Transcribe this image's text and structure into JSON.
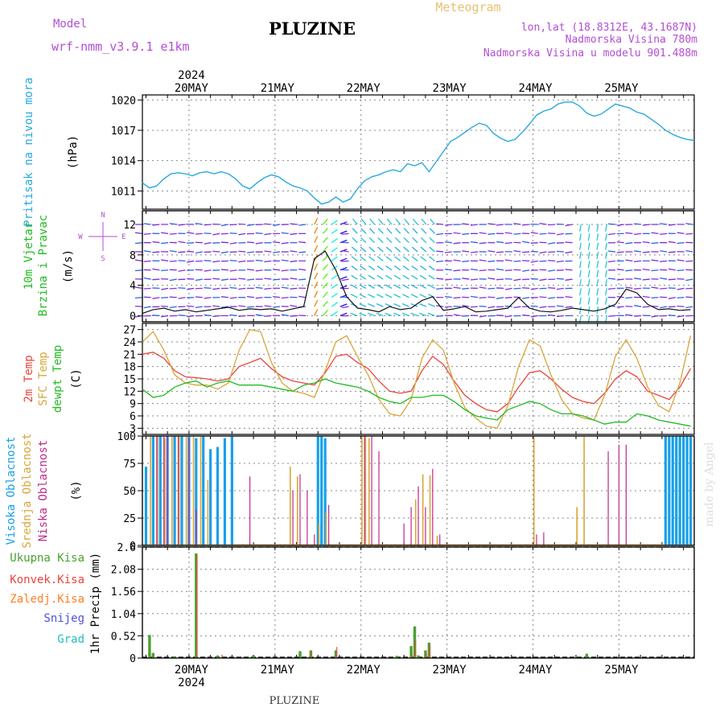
{
  "header": {
    "model_label": "Model",
    "model_name": "wrf-nmm_v3.9.1 e1km",
    "station": "PLUZINE",
    "product": "Meteogram",
    "lonlat": "lon,lat (18.8312E, 43.1687N)",
    "elevation": "Nadmorska Visina 780m",
    "model_elevation": "Nadmorska Visina u modelu 901.488m",
    "footer_station": "PLUZINE",
    "watermark": "made by Angel"
  },
  "colors": {
    "pressure": "#29a9e0",
    "temp2m": "#e8453c",
    "sfc_temp": "#d9a63a",
    "dewpoint": "#22bb22",
    "high_cloud": "#1aa0e8",
    "mid_cloud": "#d9a63a",
    "low_cloud": "#c0288c",
    "total_precip": "#4aa030",
    "conv_precip": "#e8453c",
    "frozen_precip": "#ff7f20",
    "snow": "#5050e0",
    "graupel": "#20c0c0",
    "title_purple": "#b44ed2",
    "title_gold": "#e8c070"
  },
  "time_axis": {
    "top_year": "2024",
    "bottom_year": "2024",
    "days": [
      "20MAY",
      "21MAY",
      "22MAY",
      "23MAY",
      "24MAY",
      "25MAY"
    ],
    "start_hour": -13,
    "end_hour": 141
  },
  "chart_data": [
    {
      "type": "line",
      "panel": "pressure",
      "ylabel": [
        "Pritisak na nivou mora",
        "(hPa)"
      ],
      "yticks": [
        1011,
        1014,
        1017,
        1020
      ],
      "ylim": [
        1009.2,
        1020.5
      ],
      "series": [
        {
          "x": [
            -13,
            -11,
            -9,
            -7,
            -5,
            -3,
            -1,
            1,
            3,
            5,
            7,
            9,
            11,
            13,
            15,
            17,
            19,
            21,
            23,
            25,
            27,
            29,
            31,
            33,
            35,
            37,
            39,
            41,
            43,
            45,
            47,
            49,
            51,
            53,
            55,
            57,
            59,
            61,
            63,
            65,
            67,
            69,
            71,
            73,
            75,
            77,
            79,
            81,
            83,
            85,
            87,
            89,
            91,
            93,
            95,
            97,
            99,
            101,
            103,
            105,
            107,
            109,
            111,
            113,
            115,
            117,
            119,
            121,
            123,
            125,
            127,
            129,
            131,
            133,
            135,
            137,
            139,
            141
          ],
          "values": [
            1011.8,
            1011.3,
            1011.5,
            1012.2,
            1012.7,
            1012.8,
            1012.7,
            1012.5,
            1012.8,
            1012.9,
            1012.7,
            1012.9,
            1012.7,
            1012.2,
            1011.5,
            1011.2,
            1011.8,
            1012.3,
            1012.6,
            1012.4,
            1011.9,
            1011.5,
            1011.3,
            1011.0,
            1010.3,
            1009.7,
            1009.9,
            1010.4,
            1009.9,
            1010.2,
            1011.2,
            1012.0,
            1012.4,
            1012.6,
            1012.9,
            1013.1,
            1012.9,
            1013.7,
            1013.5,
            1013.8,
            1012.9,
            1013.9,
            1014.9,
            1015.9,
            1016.3,
            1016.8,
            1017.3,
            1017.7,
            1017.5,
            1016.7,
            1016.2,
            1015.9,
            1016.1,
            1016.8,
            1017.6,
            1018.5,
            1018.9,
            1019.1,
            1019.6,
            1019.8,
            1019.8,
            1019.4,
            1018.7,
            1018.4,
            1018.6,
            1019.1,
            1019.6,
            1019.4,
            1019.2,
            1018.8,
            1018.6,
            1018.1,
            1017.6,
            1017.0,
            1016.6,
            1016.3,
            1016.1,
            1016.0
          ]
        }
      ]
    },
    {
      "type": "line",
      "panel": "wind",
      "ylabel": [
        "10m Vjetar",
        "Brzina i Pravac",
        "(m/s)"
      ],
      "compass": [
        "N",
        "W",
        "E",
        "S"
      ],
      "yticks": [
        0,
        4,
        8,
        12
      ],
      "ylim": [
        -0.8,
        13.8
      ],
      "series": [
        {
          "name": "speed",
          "x": [
            -13,
            -10,
            -7,
            -4,
            -1,
            2,
            5,
            8,
            11,
            14,
            17,
            20,
            23,
            26,
            29,
            32,
            35,
            38,
            41,
            44,
            47,
            50,
            53,
            56,
            59,
            62,
            65,
            68,
            71,
            74,
            77,
            80,
            83,
            86,
            89,
            92,
            95,
            98,
            101,
            104,
            107,
            110,
            113,
            116,
            119,
            122,
            125,
            128,
            131,
            134,
            137,
            140
          ],
          "values": [
            0.3,
            0.8,
            1.0,
            0.6,
            0.8,
            0.5,
            0.7,
            0.9,
            1.1,
            0.7,
            0.9,
            0.8,
            0.9,
            0.6,
            0.9,
            1.2,
            7.5,
            8.5,
            6.0,
            2.5,
            1.0,
            0.8,
            0.5,
            1.2,
            0.8,
            1.0,
            2.0,
            2.5,
            0.7,
            0.9,
            1.2,
            0.5,
            0.6,
            0.8,
            1.0,
            2.4,
            1.0,
            0.6,
            0.5,
            0.7,
            1.0,
            0.8,
            0.6,
            0.9,
            1.5,
            3.5,
            3.0,
            1.5,
            0.8,
            0.9,
            0.7,
            0.8
          ]
        }
      ]
    },
    {
      "type": "line",
      "panel": "temperature",
      "ylabel": [
        "2m Temp",
        "SFC Temp",
        "dewpt Temp",
        "(C)"
      ],
      "yticks": [
        3,
        6,
        9,
        12,
        15,
        18,
        21,
        24,
        27
      ],
      "ylim": [
        1.5,
        28.5
      ],
      "series": [
        {
          "name": "2m Temp",
          "x": [
            -13,
            -10,
            -7,
            -4,
            -1,
            2,
            5,
            8,
            11,
            14,
            17,
            20,
            23,
            26,
            29,
            32,
            35,
            38,
            41,
            44,
            47,
            50,
            53,
            56,
            59,
            62,
            65,
            68,
            71,
            74,
            77,
            80,
            83,
            86,
            89,
            92,
            95,
            98,
            101,
            104,
            107,
            110,
            113,
            116,
            119,
            122,
            125,
            128,
            131,
            134,
            137,
            140
          ],
          "values": [
            21.0,
            21.5,
            20.0,
            17.0,
            15.5,
            15.3,
            15.0,
            14.5,
            15.0,
            18.0,
            19.0,
            20.0,
            17.5,
            15.5,
            14.5,
            14.0,
            13.5,
            16.5,
            20.5,
            21.0,
            19.0,
            17.5,
            14.5,
            12.0,
            11.5,
            12.0,
            17.0,
            20.5,
            18.5,
            14.5,
            11.0,
            9.0,
            7.5,
            7.0,
            9.0,
            13.0,
            16.5,
            17.0,
            15.0,
            12.5,
            10.5,
            9.5,
            9.0,
            11.5,
            15.0,
            17.0,
            15.5,
            12.0,
            11.0,
            10.0,
            13.0,
            17.5
          ]
        },
        {
          "name": "SFC Temp",
          "x": [
            -13,
            -10,
            -7,
            -4,
            -1,
            2,
            5,
            8,
            11,
            14,
            17,
            20,
            23,
            26,
            29,
            32,
            35,
            38,
            41,
            44,
            47,
            50,
            53,
            56,
            59,
            62,
            65,
            68,
            71,
            74,
            77,
            80,
            83,
            86,
            89,
            92,
            95,
            98,
            101,
            104,
            107,
            110,
            113,
            116,
            119,
            122,
            125,
            128,
            131,
            134,
            137,
            140
          ],
          "values": [
            24.0,
            26.5,
            22.0,
            16.0,
            14.0,
            13.5,
            13.5,
            12.5,
            14.0,
            22.0,
            27.0,
            26.5,
            19.0,
            14.0,
            12.0,
            11.5,
            10.5,
            17.0,
            24.0,
            25.5,
            20.5,
            16.0,
            10.0,
            6.5,
            6.0,
            10.0,
            20.0,
            24.5,
            22.0,
            14.0,
            8.0,
            5.5,
            3.5,
            3.0,
            8.5,
            18.0,
            24.5,
            23.0,
            16.0,
            10.0,
            6.5,
            5.5,
            5.0,
            11.0,
            20.5,
            24.5,
            20.0,
            13.0,
            8.5,
            7.0,
            14.0,
            25.5
          ]
        },
        {
          "name": "dewpt Temp",
          "x": [
            -13,
            -10,
            -7,
            -4,
            -1,
            2,
            5,
            8,
            11,
            14,
            17,
            20,
            23,
            26,
            29,
            32,
            35,
            38,
            41,
            44,
            47,
            50,
            53,
            56,
            59,
            62,
            65,
            68,
            71,
            74,
            77,
            80,
            83,
            86,
            89,
            92,
            95,
            98,
            101,
            104,
            107,
            110,
            113,
            116,
            119,
            122,
            125,
            128,
            131,
            134,
            137,
            140
          ],
          "values": [
            12.5,
            10.5,
            11.0,
            13.0,
            14.0,
            14.5,
            13.0,
            14.0,
            14.5,
            13.5,
            13.5,
            13.5,
            13.0,
            12.5,
            12.0,
            13.5,
            14.0,
            15.0,
            14.0,
            13.5,
            13.0,
            12.0,
            10.5,
            9.5,
            9.0,
            10.5,
            10.5,
            11.0,
            11.0,
            9.5,
            7.5,
            6.0,
            5.5,
            5.0,
            7.5,
            8.5,
            9.5,
            9.0,
            7.5,
            6.5,
            6.5,
            6.0,
            5.0,
            4.0,
            4.5,
            4.5,
            6.5,
            6.0,
            5.0,
            4.5,
            4.0,
            3.5
          ]
        }
      ]
    },
    {
      "type": "bar",
      "panel": "cloud",
      "ylabel_lines": [
        "Visoka Oblacnost",
        "Srednja Oblacnost",
        "Niska Oblacnost"
      ],
      "ylabel_unit": "(%)",
      "yticks": [
        0,
        25,
        50,
        75,
        100
      ],
      "ylim": [
        0,
        100
      ],
      "series": [
        {
          "name": "Visoka Oblacnost",
          "x": [
            -12,
            -10,
            -8,
            -6,
            -4,
            -2,
            0,
            2,
            4,
            6,
            8,
            10,
            12,
            36,
            37,
            38,
            133,
            134,
            135,
            136,
            137,
            138,
            139,
            140
          ],
          "values": [
            72,
            100,
            100,
            100,
            100,
            100,
            100,
            98,
            100,
            88,
            90,
            98,
            100,
            100,
            100,
            98,
            100,
            100,
            100,
            100,
            100,
            100,
            100,
            100
          ]
        },
        {
          "name": "Srednja Oblacnost",
          "x": [
            -11,
            -9,
            -7,
            -5,
            -3,
            -1,
            1,
            3,
            5,
            28,
            30,
            36,
            38,
            48,
            49,
            50,
            63,
            65,
            67,
            69,
            96,
            108,
            110
          ],
          "values": [
            100,
            100,
            98,
            100,
            100,
            100,
            100,
            100,
            60,
            72,
            63,
            20,
            30,
            100,
            100,
            98,
            42,
            65,
            64,
            9,
            100,
            35,
            100
          ]
        },
        {
          "name": "Niska Oblacnost",
          "x": [
            -9,
            -7,
            -6,
            -3,
            0,
            2,
            13,
            17,
            29,
            31,
            33,
            35,
            39,
            49,
            51,
            53,
            60,
            62,
            64,
            66,
            68,
            70,
            97,
            99,
            117,
            120,
            122
          ],
          "values": [
            100,
            100,
            100,
            100,
            98,
            33,
            0,
            63,
            50,
            65,
            50,
            10,
            37,
            100,
            100,
            86,
            20,
            35,
            54,
            35,
            70,
            10,
            10,
            12,
            86,
            92,
            92
          ]
        }
      ]
    },
    {
      "type": "bar",
      "panel": "precip",
      "ylabel_lines": [
        "Ukupna Kisa",
        "Konvek.Kisa",
        "Zaledj.Kisa",
        "Snijeg",
        "Grad"
      ],
      "ylabel_unit": "1hr Precip (mm)",
      "yticks": [
        0,
        0.52,
        1.04,
        1.56,
        2.08,
        2.6
      ],
      "yticklabels": [
        "0",
        "0.52",
        "1.04",
        "1.56",
        "2.08",
        "2.6"
      ],
      "ylim": [
        0,
        2.6
      ],
      "series": [
        {
          "name": "Ukupna Kisa",
          "x": [
            -11,
            -10,
            -4,
            2,
            8,
            18,
            31,
            34,
            41,
            58,
            62,
            63,
            64,
            66,
            67,
            111
          ],
          "values": [
            0.54,
            0.12,
            0.04,
            2.45,
            0.06,
            0.06,
            0.16,
            0.18,
            0.18,
            0.05,
            0.28,
            0.74,
            0.06,
            0.18,
            0.36,
            0.1
          ]
        },
        {
          "name": "Konvek.Kisa",
          "x": [
            2,
            9,
            34,
            41,
            62,
            63,
            66,
            67
          ],
          "values": [
            2.4,
            0.08,
            0.16,
            0.26,
            0.1,
            0.4,
            0.12,
            0.3
          ]
        }
      ]
    }
  ]
}
